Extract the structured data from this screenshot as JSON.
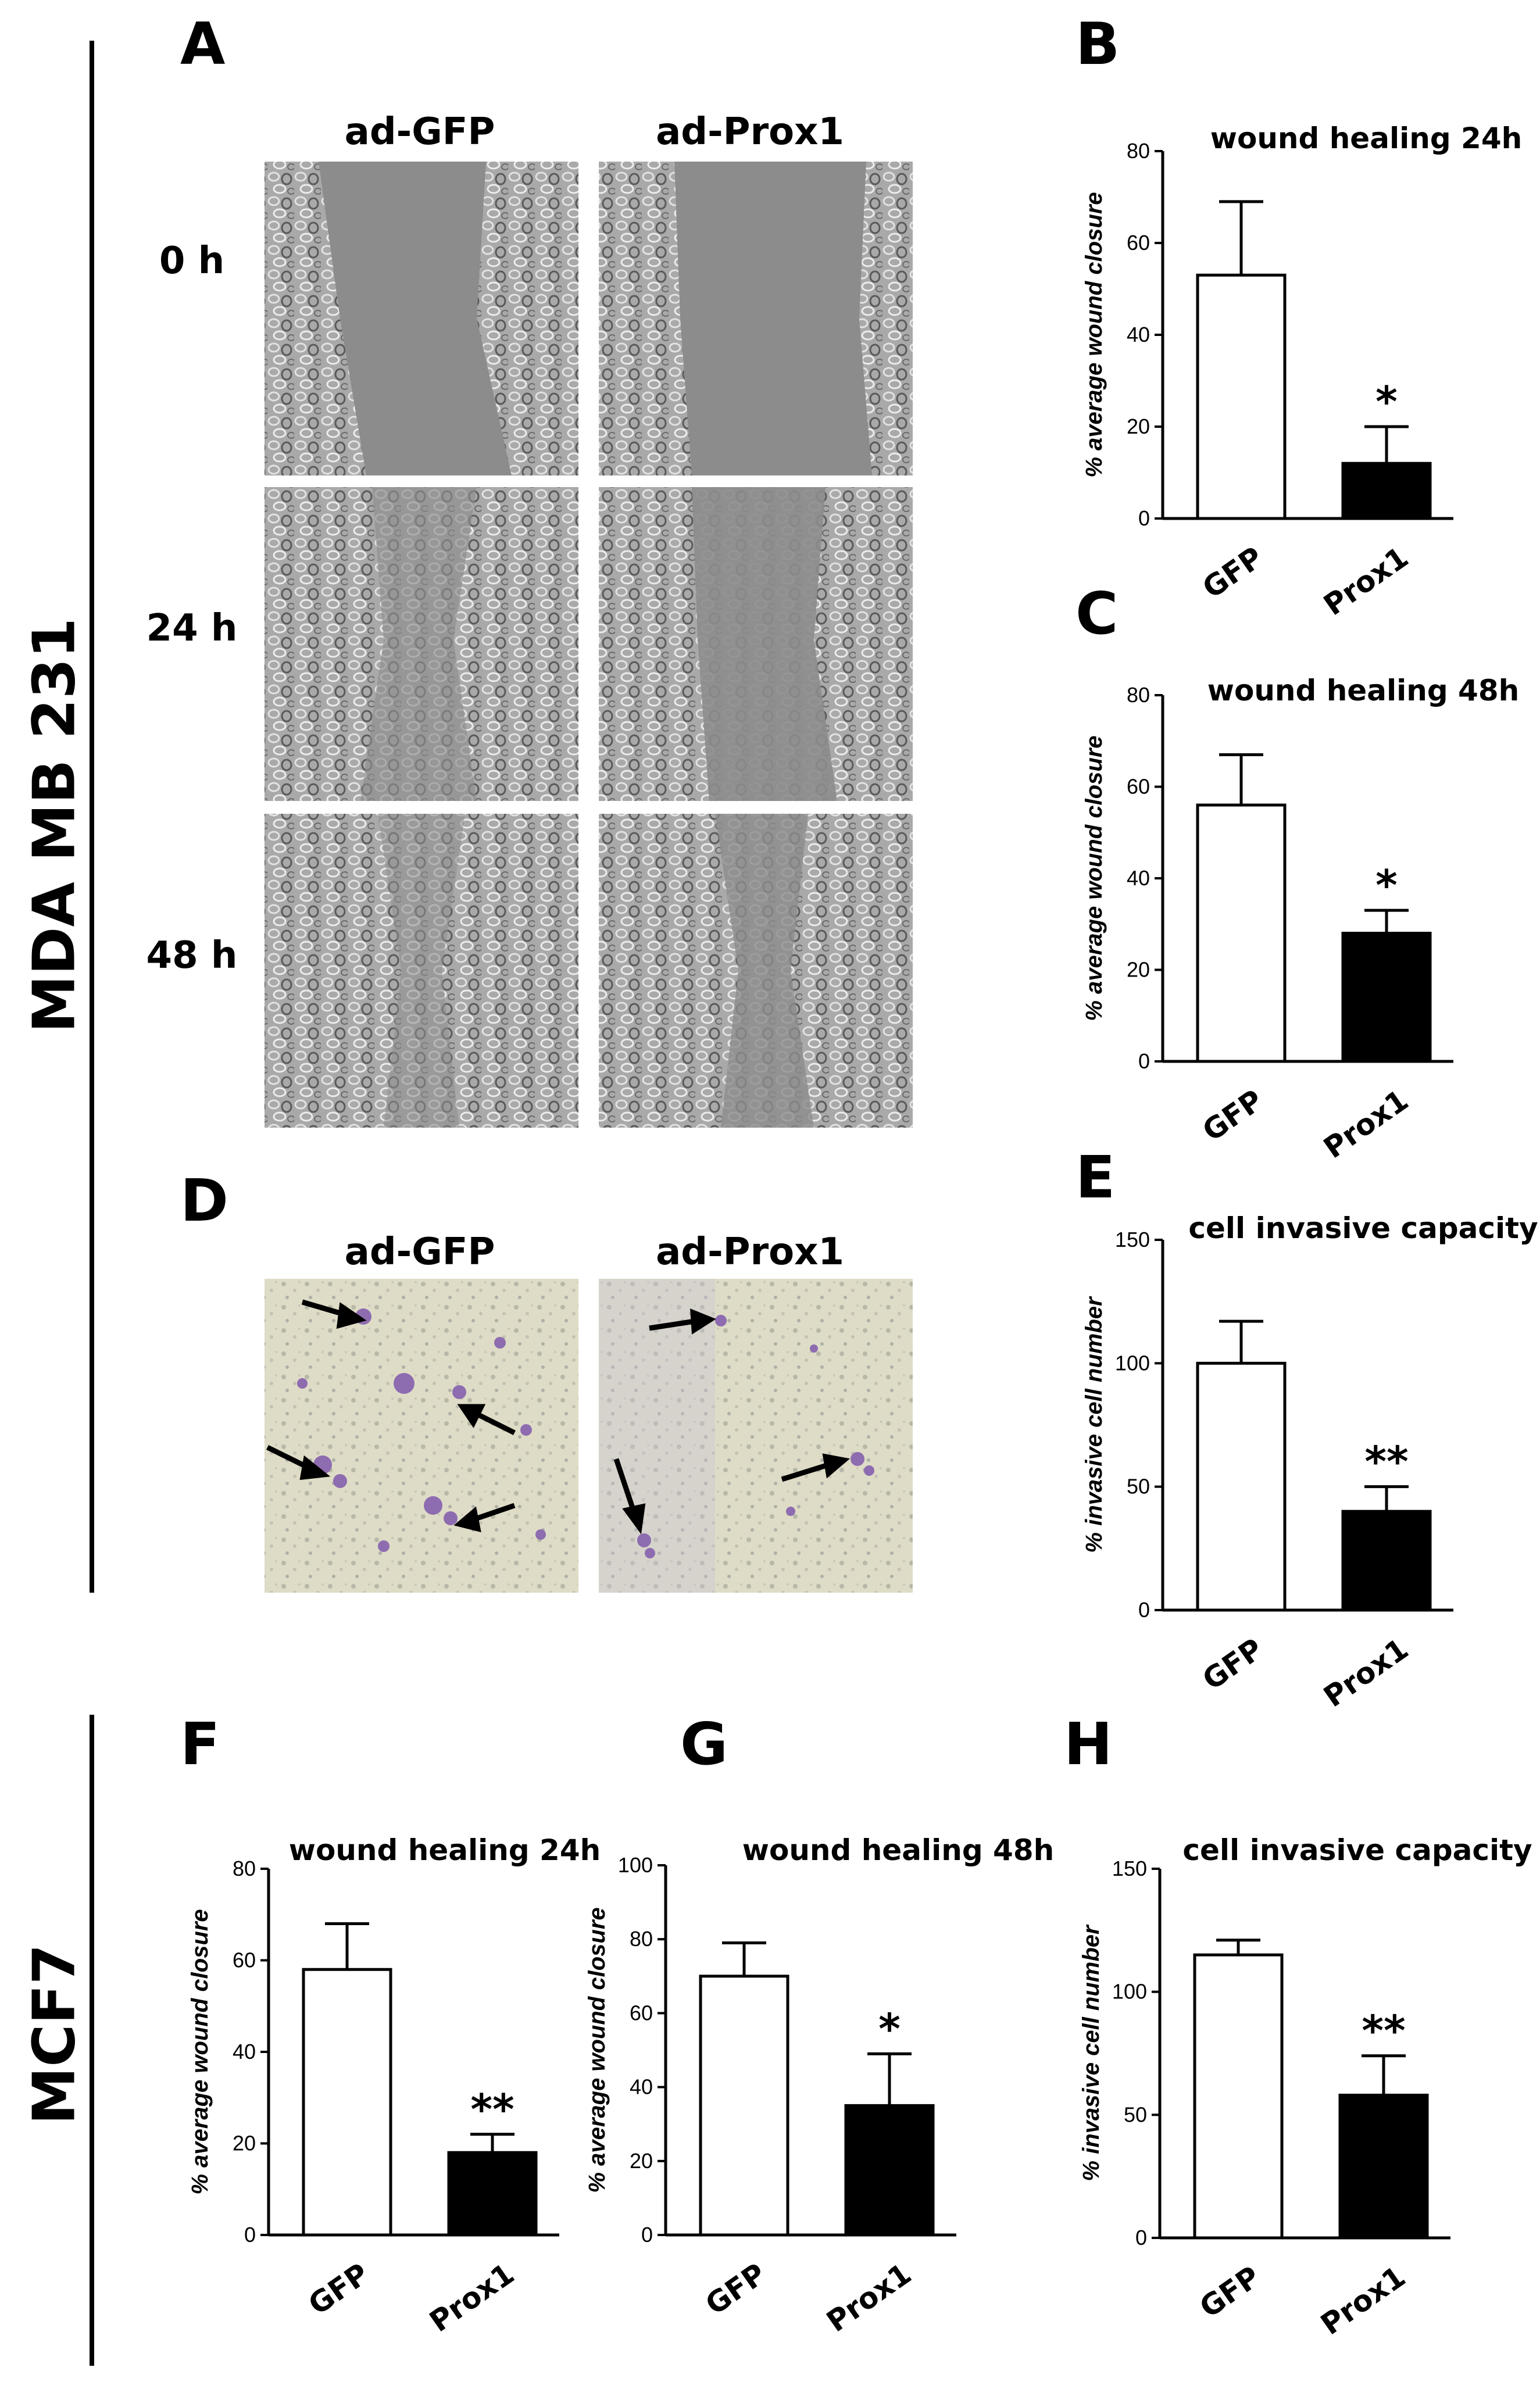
{
  "labels": {
    "cell_line_1": "MDA MB 231",
    "cell_line_2": "MCF7",
    "panel_A": "A",
    "panel_D": "D",
    "col_gfp": "ad-GFP",
    "col_prox1": "ad-Prox1",
    "row_0h": "0 h",
    "row_24h": "24 h",
    "row_48h": "48 h"
  },
  "colors": {
    "gfp_bar": "#ffffff",
    "prox1_bar": "#000000",
    "micrograph_gray": "#8d8d8d",
    "invasion_bg": "#dcdcc4",
    "invasion_cells": "#8e6cb0"
  },
  "chart_data": [
    {
      "id": "B",
      "panel": "B",
      "type": "bar",
      "title": "wound healing 24h",
      "ylabel": "% average wound closure",
      "ylim": [
        0,
        80
      ],
      "yticks": [
        "0",
        "20",
        "40",
        "60",
        "80"
      ],
      "categories": [
        "GFP",
        "Prox1"
      ],
      "values": [
        53,
        12
      ],
      "errors": [
        16,
        8
      ],
      "significance": [
        "",
        "*"
      ]
    },
    {
      "id": "C",
      "panel": "C",
      "type": "bar",
      "title": "wound healing 48h",
      "ylabel": "% average wound closure",
      "ylim": [
        0,
        80
      ],
      "yticks": [
        "0",
        "20",
        "40",
        "60",
        "80"
      ],
      "categories": [
        "GFP",
        "Prox1"
      ],
      "values": [
        56,
        28
      ],
      "errors": [
        11,
        5
      ],
      "significance": [
        "",
        "*"
      ]
    },
    {
      "id": "E",
      "panel": "E",
      "type": "bar",
      "title": "cell invasive capacity",
      "ylabel": "% invasive cell number",
      "ylim": [
        0,
        150
      ],
      "yticks": [
        "0",
        "50",
        "100",
        "150"
      ],
      "categories": [
        "GFP",
        "Prox1"
      ],
      "values": [
        100,
        40
      ],
      "errors": [
        17,
        10
      ],
      "significance": [
        "",
        "**"
      ]
    },
    {
      "id": "F",
      "panel": "F",
      "type": "bar",
      "title": "wound healing 24h",
      "ylabel": "% average wound closure",
      "ylim": [
        0,
        80
      ],
      "yticks": [
        "0",
        "20",
        "40",
        "60",
        "80"
      ],
      "categories": [
        "GFP",
        "Prox1"
      ],
      "values": [
        58,
        18
      ],
      "errors": [
        10,
        4
      ],
      "significance": [
        "",
        "**"
      ]
    },
    {
      "id": "G",
      "panel": "G",
      "type": "bar",
      "title": "wound healing 48h",
      "ylabel": "% average wound closure",
      "ylim": [
        0,
        100
      ],
      "yticks": [
        "0",
        "20",
        "40",
        "60",
        "80",
        "100"
      ],
      "categories": [
        "GFP",
        "Prox1"
      ],
      "values": [
        70,
        35
      ],
      "errors": [
        9,
        14
      ],
      "significance": [
        "",
        "*"
      ]
    },
    {
      "id": "H",
      "panel": "H",
      "type": "bar",
      "title": "cell invasive capacity",
      "ylabel": "% invasive cell number",
      "ylim": [
        0,
        150
      ],
      "yticks": [
        "0",
        "50",
        "100",
        "150"
      ],
      "categories": [
        "GFP",
        "Prox1"
      ],
      "values": [
        115,
        58
      ],
      "errors": [
        6,
        16
      ],
      "significance": [
        "",
        "**"
      ]
    }
  ]
}
